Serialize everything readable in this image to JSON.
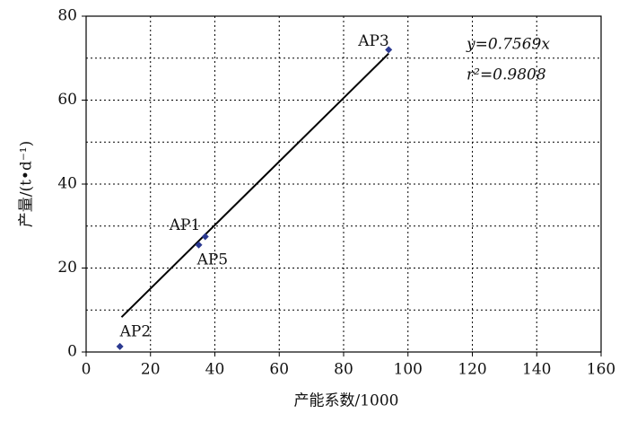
{
  "chart_data": {
    "type": "scatter",
    "x_label": "产能系数/1000",
    "y_label": "产量/(t•d⁻¹)",
    "x": [
      94,
      37,
      35,
      10.5
    ],
    "values": [
      72,
      27.5,
      25.5,
      1.3
    ],
    "point_labels": [
      "AP3",
      "AP1",
      "AP5",
      "AP2"
    ],
    "color": "#2b3990",
    "trendline": {
      "x": [
        11,
        94
      ],
      "y": [
        8.3,
        71.1
      ],
      "color": "#000000"
    },
    "annotations": [
      "y=0.7569x",
      "r²=0.9808"
    ],
    "xlim": [
      0,
      160
    ],
    "xticks": [
      0,
      20,
      40,
      60,
      80,
      100,
      120,
      140,
      160
    ],
    "ylim": [
      0,
      80
    ],
    "yticks": [
      0,
      20,
      40,
      60,
      80
    ],
    "y_minor_gridlines": [
      10,
      30,
      50,
      70
    ],
    "grid": true
  }
}
